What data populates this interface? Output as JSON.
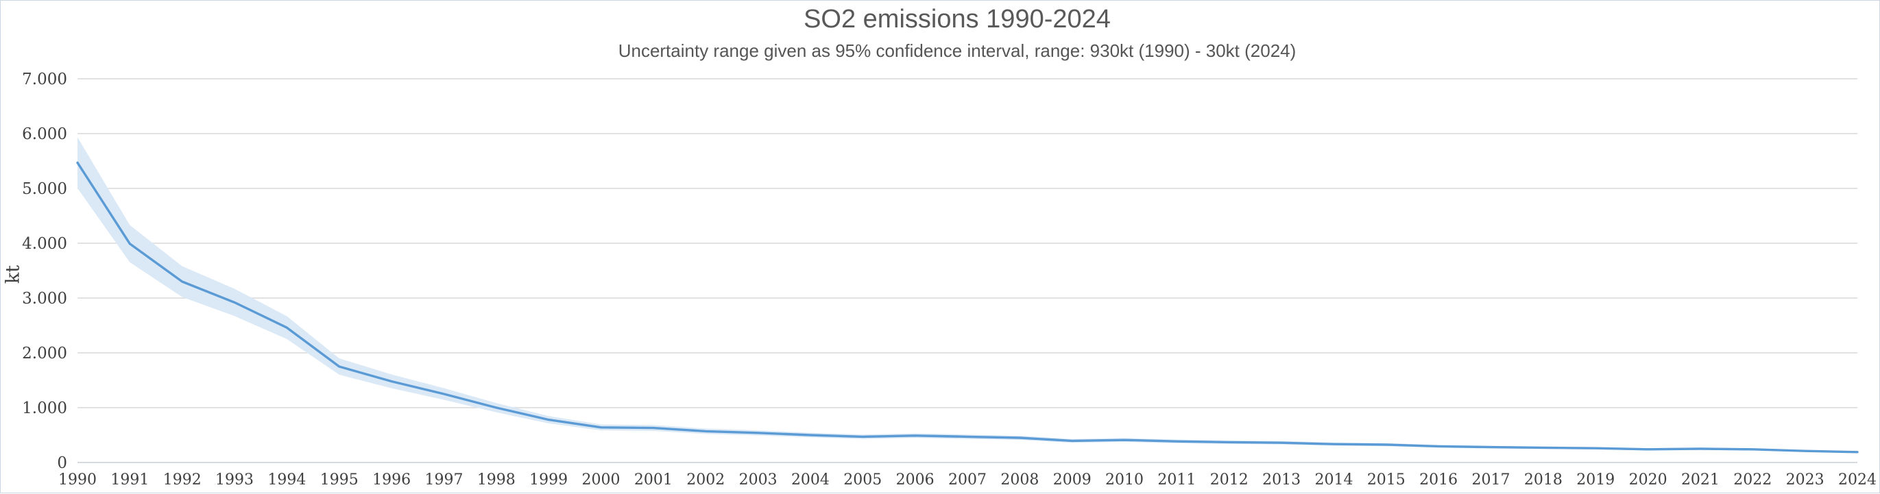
{
  "chart_data": {
    "type": "line",
    "title": "SO2 emissions 1990-2024",
    "subtitle": "Uncertainty range given as 95% confidence interval, range: 930kt (1990) - 30kt (2024)",
    "ylabel": "kt",
    "unit": "kt",
    "legend": "none",
    "grid": true,
    "ylim": [
      0,
      7000
    ],
    "y_ticks": [
      {
        "value": 0,
        "label": "0"
      },
      {
        "value": 1000,
        "label": "1.000"
      },
      {
        "value": 2000,
        "label": "2.000"
      },
      {
        "value": 3000,
        "label": "3.000"
      },
      {
        "value": 4000,
        "label": "4.000"
      },
      {
        "value": 5000,
        "label": "5.000"
      },
      {
        "value": 6000,
        "label": "6.000"
      },
      {
        "value": 7000,
        "label": "7.000"
      }
    ],
    "x": [
      1990,
      1991,
      1992,
      1993,
      1994,
      1995,
      1996,
      1997,
      1998,
      1999,
      2000,
      2001,
      2002,
      2003,
      2004,
      2005,
      2006,
      2007,
      2008,
      2009,
      2010,
      2011,
      2012,
      2013,
      2014,
      2015,
      2016,
      2017,
      2018,
      2019,
      2020,
      2021,
      2022,
      2023,
      2024
    ],
    "series": [
      {
        "name": "SO2 emissions (kt)",
        "values": [
          5470,
          3990,
          3300,
          2920,
          2460,
          1750,
          1480,
          1250,
          1000,
          780,
          640,
          630,
          570,
          540,
          500,
          470,
          490,
          470,
          450,
          395,
          410,
          385,
          370,
          360,
          335,
          325,
          295,
          280,
          270,
          260,
          240,
          250,
          240,
          210,
          190
        ]
      }
    ],
    "uncertainty": {
      "kind": "95% confidence interval",
      "half_width_pct": 8.5,
      "range_1990_kt": 930,
      "range_2024_kt": 30
    },
    "colors": {
      "line": "#5b9bd5",
      "band": "#dbe8f6",
      "gridline": "#d9d9d9",
      "axis_line": "#c6cdd4",
      "tick_text": "#404040",
      "title_text": "#595959",
      "frame_border": "#ccd6e2"
    }
  }
}
